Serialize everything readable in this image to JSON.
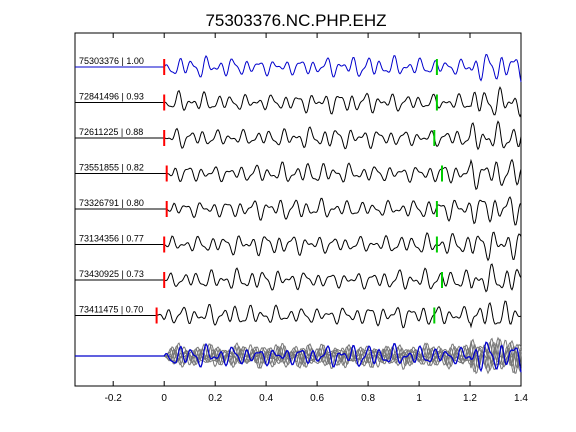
{
  "chart_data": {
    "type": "line",
    "title": "75303376.NC.PHP.EHZ",
    "xlabel": "",
    "ylabel": "",
    "xlim": [
      -0.35,
      1.4
    ],
    "xticks": [
      -0.2,
      0,
      0.2,
      0.4,
      0.6,
      0.8,
      1,
      1.2,
      1.4
    ],
    "xtick_labels": [
      "-0.2",
      "0",
      "0.2",
      "0.4",
      "0.6",
      "0.8",
      "1",
      "1.2",
      "1.4"
    ],
    "grid": false,
    "traces": [
      {
        "label": "75303376 | 1.00",
        "color": "#0000cc",
        "p_pick": 0.0,
        "s_pick": 1.07,
        "seed": 1
      },
      {
        "label": "72841496 | 0.93",
        "color": "#000000",
        "p_pick": 0.0,
        "s_pick": 1.07,
        "seed": 2
      },
      {
        "label": "72611225 | 0.88",
        "color": "#000000",
        "p_pick": 0.0,
        "s_pick": 1.06,
        "seed": 3
      },
      {
        "label": "73551855 | 0.82",
        "color": "#000000",
        "p_pick": 0.01,
        "s_pick": 1.09,
        "seed": 4
      },
      {
        "label": "73326791 | 0.80",
        "color": "#000000",
        "p_pick": 0.01,
        "s_pick": 1.07,
        "seed": 5
      },
      {
        "label": "73134356 | 0.77",
        "color": "#000000",
        "p_pick": 0.0,
        "s_pick": 1.07,
        "seed": 6
      },
      {
        "label": "73430925 | 0.73",
        "color": "#000000",
        "p_pick": 0.0,
        "s_pick": 1.09,
        "seed": 7
      },
      {
        "label": "73411475 | 0.70",
        "color": "#000000",
        "p_pick": -0.03,
        "s_pick": 1.06,
        "seed": 8
      }
    ],
    "stack_colors": {
      "reference": "#0000cc",
      "others": "#777777"
    },
    "pick_colors": {
      "p": "#ff0000",
      "s": "#00cc00"
    }
  }
}
